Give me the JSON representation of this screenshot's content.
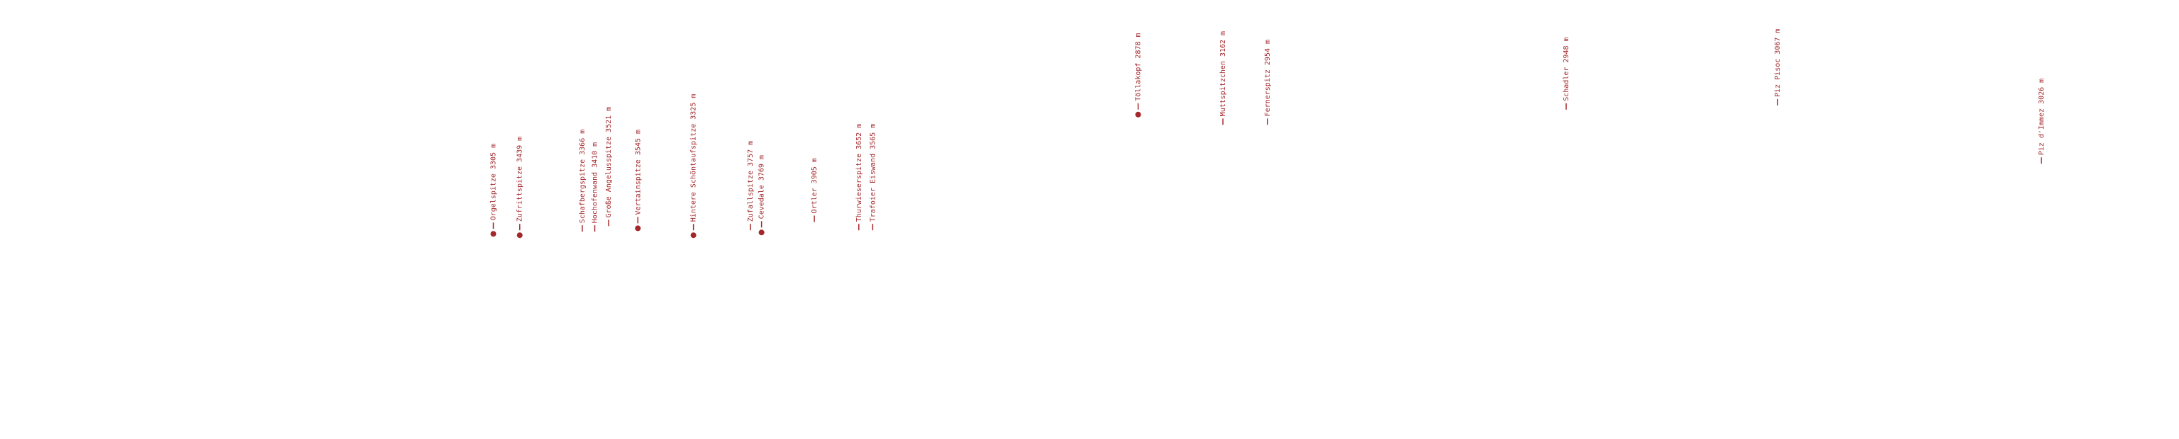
{
  "peaks": [
    {
      "label": "Orgelspitze 3305 m",
      "marker": true
    },
    {
      "label": "Zufrittspitze 3439 m",
      "marker": true
    },
    {
      "label": "Schafbergspitze 3366 m",
      "marker": false
    },
    {
      "label": "Hochofenwand 3410 m",
      "marker": false
    },
    {
      "label": "Große Angelusspitze 3521 m",
      "marker": false
    },
    {
      "label": "Vertainspitze 3545 m",
      "marker": true
    },
    {
      "label": "Hintere Schöntaufspitze 3325 m",
      "marker": true
    },
    {
      "label": "Zufallspitze 3757 m",
      "marker": false
    },
    {
      "label": "Cevedale 3769 m",
      "marker": true
    },
    {
      "label": "Ortler 3905 m",
      "marker": false
    },
    {
      "label": "Thurwieserspitze 3652 m",
      "marker": false
    },
    {
      "label": "Trafoier Eiswand 3565 m",
      "marker": false
    },
    {
      "label": "Töllakopf 2878 m",
      "marker": true
    },
    {
      "label": "Muttspitzchen 3162 m",
      "marker": false
    },
    {
      "label": "Fernerspitz 2954 m",
      "marker": false
    },
    {
      "label": "Schadler 2948 m",
      "marker": false
    },
    {
      "label": "Piz Pisoc 3067 m",
      "marker": false
    },
    {
      "label": "Piz d'Immez 3026 m",
      "marker": false
    }
  ]
}
